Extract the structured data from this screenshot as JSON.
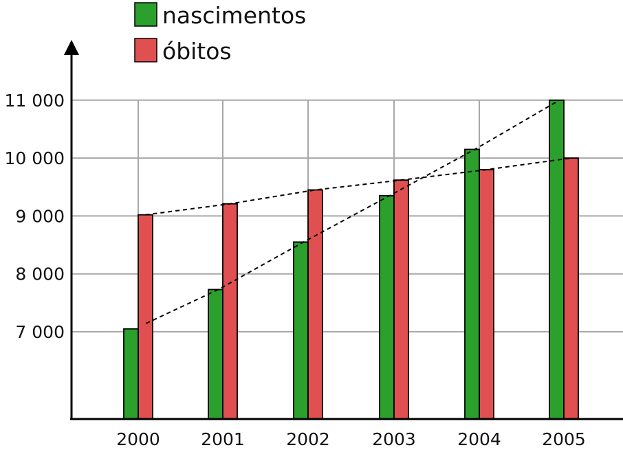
{
  "chart_data": {
    "type": "bar",
    "categories": [
      "2000",
      "2001",
      "2002",
      "2003",
      "2004",
      "2005"
    ],
    "series": [
      {
        "name": "nascimentos",
        "color": "#2ca02c",
        "values": [
          7050,
          7730,
          8550,
          9350,
          10150,
          11000
        ]
      },
      {
        "name": "óbitos",
        "color": "#e05050",
        "values": [
          9020,
          9210,
          9450,
          9620,
          9800,
          10000
        ]
      }
    ],
    "y_ticks": [
      7000,
      8000,
      9000,
      10000,
      11000
    ],
    "y_tick_labels": [
      "7 000",
      "8 000",
      "9 000",
      "10 000",
      "11 000"
    ],
    "ylim": [
      5500,
      12000
    ],
    "grid": true,
    "legend_position": "top-left",
    "trend_lines": "dashed",
    "title": "",
    "xlabel": "",
    "ylabel": ""
  }
}
